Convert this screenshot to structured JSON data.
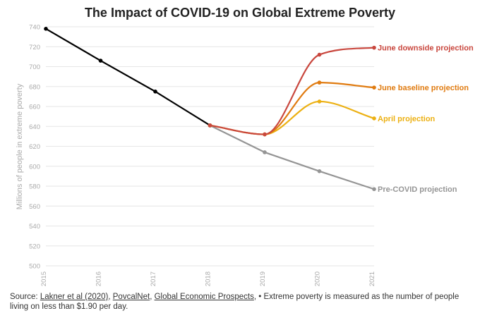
{
  "page": {
    "title": "The Impact of COVID-19 on Global Extreme Poverty"
  },
  "source": {
    "prefix": "Source: ",
    "links": [
      "Lakner et al (2020)",
      "PovcalNet",
      "Global Economic Prospects"
    ],
    "sep1": ", ",
    "sep2": ", ",
    "suffix": ", • Extreme poverty is measured as the number of people living on less than $1.90 per day."
  },
  "chart_data": {
    "type": "line",
    "title": "The Impact of COVID-19 on Global Extreme Poverty",
    "xlabel": "",
    "ylabel": "Millions of people in extreme poverty",
    "x_ticks": [
      "2015",
      "2016",
      "2017",
      "2018",
      "2019",
      "2020",
      "2021"
    ],
    "y_ticks": [
      "500",
      "520",
      "540",
      "560",
      "580",
      "600",
      "620",
      "640",
      "660",
      "680",
      "700",
      "720",
      "740"
    ],
    "xlim": [
      2015,
      2021
    ],
    "ylim": [
      500,
      740
    ],
    "grid": "horizontal",
    "series": [
      {
        "label_key": "historical",
        "color": "#000000",
        "curve": false,
        "x": [
          2015,
          2016,
          2017,
          2018
        ],
        "y": [
          738,
          706,
          675,
          641
        ]
      },
      {
        "name": "Pre-COVID projection",
        "color": "#959595",
        "curve": false,
        "x": [
          2018,
          2019,
          2020,
          2021
        ],
        "y": [
          641,
          614,
          595,
          577
        ]
      },
      {
        "name": "April projection",
        "color": "#ecb012",
        "curve": true,
        "x": [
          2018,
          2019,
          2020,
          2021
        ],
        "y": [
          641,
          632,
          665,
          648
        ]
      },
      {
        "name": "June baseline projection",
        "color": "#e07b10",
        "curve": true,
        "x": [
          2018,
          2019,
          2020,
          2021
        ],
        "y": [
          641,
          632,
          684,
          679
        ]
      },
      {
        "name": "June downside projection",
        "color": "#c9473e",
        "curve": true,
        "x": [
          2018,
          2019,
          2020,
          2021
        ],
        "y": [
          641,
          632,
          712,
          719
        ]
      }
    ]
  }
}
